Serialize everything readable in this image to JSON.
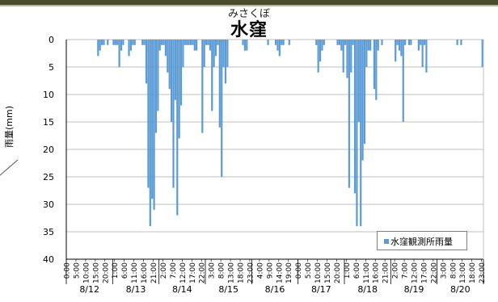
{
  "header": {
    "furigana": "みさくぼ",
    "title": "水窪"
  },
  "legend": {
    "label": "水窪観測所雨量"
  },
  "colors": {
    "bar": "#5b9bd5",
    "grid": "#bfbfbf",
    "axis": "#000000",
    "frame": "#4b4b2e"
  },
  "chart_data": {
    "type": "bar",
    "title": "水窪",
    "subtitle": "みさくぼ",
    "ylabel": "雨量(mm)",
    "xlabel": "",
    "ylim": [
      0,
      40
    ],
    "y_inverted": true,
    "y_ticks": [
      0,
      5,
      10,
      15,
      20,
      25,
      30,
      35,
      40
    ],
    "grid": true,
    "legend_position": "bottom-right",
    "series": [
      {
        "name": "水窪観測所雨量"
      }
    ],
    "days": [
      "8/12",
      "8/13",
      "8/14",
      "8/15",
      "8/16",
      "8/17",
      "8/18",
      "8/19",
      "8/20"
    ],
    "hour_tick_labels": [
      "0:00",
      "5:00",
      "10:00",
      "15:00",
      "20:00",
      "1:00",
      "6:00",
      "11:00",
      "16:00",
      "21:00",
      "2:00",
      "7:00",
      "12:00",
      "17:00",
      "22:00",
      "3:00",
      "8:00",
      "13:00",
      "18:00",
      "23:00",
      "4:00",
      "9:00",
      "14:00",
      "19:00",
      "0:00",
      "5:00",
      "10:00",
      "15:00",
      "20:00",
      "1:00",
      "6:00",
      "11:00",
      "16:00",
      "21:00",
      "2:00",
      "7:00",
      "12:00",
      "17:00",
      "22:00",
      "3:00",
      "8:00",
      "13:00",
      "18:00",
      "23:00"
    ],
    "hourly_values": [
      0,
      0,
      0,
      0,
      0,
      0,
      0,
      0,
      0,
      0,
      0,
      0,
      0,
      0,
      0,
      0,
      3,
      2,
      1,
      1,
      0,
      1,
      0,
      0,
      1,
      1,
      1,
      5,
      2,
      1,
      0,
      0,
      3,
      2,
      1,
      1,
      0,
      0,
      0,
      1,
      1,
      8,
      27,
      34,
      29,
      31,
      17,
      13,
      2,
      1,
      1,
      3,
      6,
      9,
      15,
      27,
      11,
      32,
      18,
      12,
      5,
      1,
      1,
      1,
      1,
      1,
      2,
      2,
      0,
      0,
      17,
      5,
      1,
      1,
      2,
      13,
      5,
      3,
      1,
      16,
      25,
      5,
      8,
      5,
      0,
      0,
      0,
      0,
      0,
      0,
      0,
      1,
      2,
      2,
      0,
      0,
      0,
      0,
      0,
      0,
      0,
      0,
      0,
      0,
      1,
      0,
      0,
      0,
      1,
      2,
      3,
      1,
      1,
      0,
      0,
      1,
      0,
      0,
      0,
      0,
      0,
      0,
      0,
      0,
      0,
      0,
      0,
      0,
      0,
      1,
      6,
      4,
      2,
      1,
      0,
      0,
      0,
      0,
      0,
      0,
      1,
      1,
      2,
      6,
      1,
      7,
      27,
      6,
      1,
      28,
      34,
      15,
      34,
      22,
      19,
      5,
      2,
      2,
      0,
      9,
      11,
      2,
      0,
      1,
      0,
      0,
      0,
      0,
      0,
      0,
      4,
      1,
      2,
      3,
      15,
      1,
      0,
      1,
      1,
      0,
      0,
      0,
      2,
      1,
      5,
      1,
      6,
      0,
      0,
      0,
      0,
      0,
      0,
      0,
      0,
      0,
      0,
      0,
      0,
      0,
      0,
      0,
      1,
      0,
      1,
      0,
      0,
      0,
      0,
      0,
      0,
      0,
      0,
      0,
      0,
      5
    ]
  }
}
